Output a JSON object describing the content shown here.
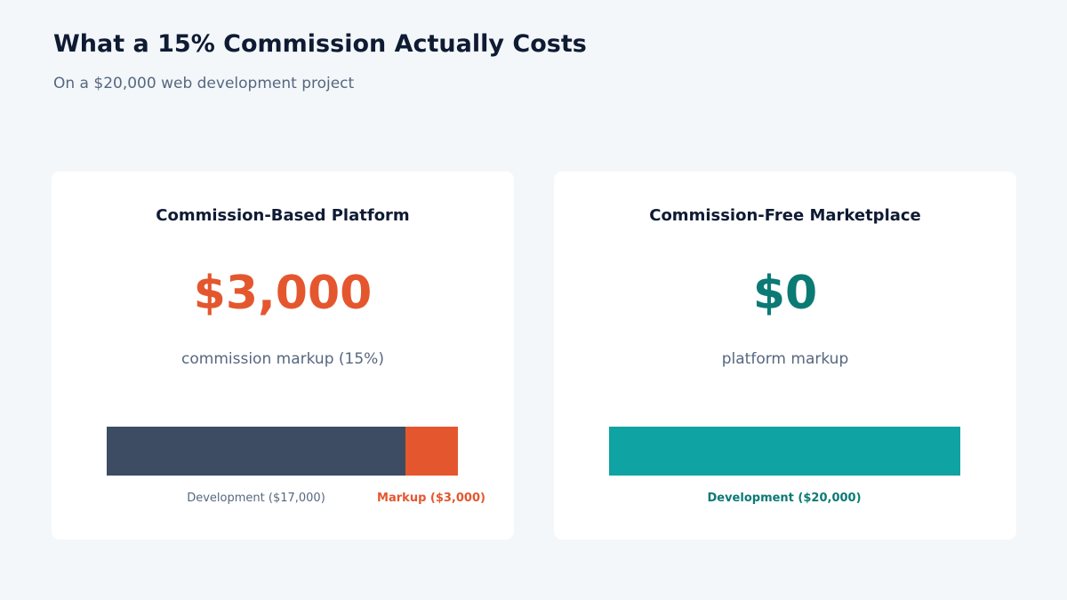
{
  "header": {
    "title": "What a 15% Commission Actually Costs",
    "subtitle": "On a $20,000 web development project"
  },
  "colors": {
    "development_dark": "#3d4c63",
    "markup": "#e4572e",
    "development_free": "#0fa3a3",
    "free_amount": "#0b7a75"
  },
  "cards": {
    "commission": {
      "title": "Commission-Based Platform",
      "amount": "$3,000",
      "caption": "commission markup (15%)",
      "dev_label": "Development ($17,000)",
      "markup_label": "Markup ($3,000)"
    },
    "free": {
      "title": "Commission-Free Marketplace",
      "amount": "$0",
      "caption": "platform markup",
      "dev_label": "Development ($20,000)"
    }
  },
  "chart_data": [
    {
      "type": "bar",
      "stacked": true,
      "categories": [
        "Commission-Based Platform"
      ],
      "series": [
        {
          "name": "Development ($17,000)",
          "values": [
            17000
          ]
        },
        {
          "name": "Markup ($3,000)",
          "values": [
            3000
          ]
        }
      ],
      "total": 20000
    },
    {
      "type": "bar",
      "stacked": true,
      "categories": [
        "Commission-Free Marketplace"
      ],
      "series": [
        {
          "name": "Development ($20,000)",
          "values": [
            20000
          ]
        }
      ],
      "total": 20000
    }
  ]
}
